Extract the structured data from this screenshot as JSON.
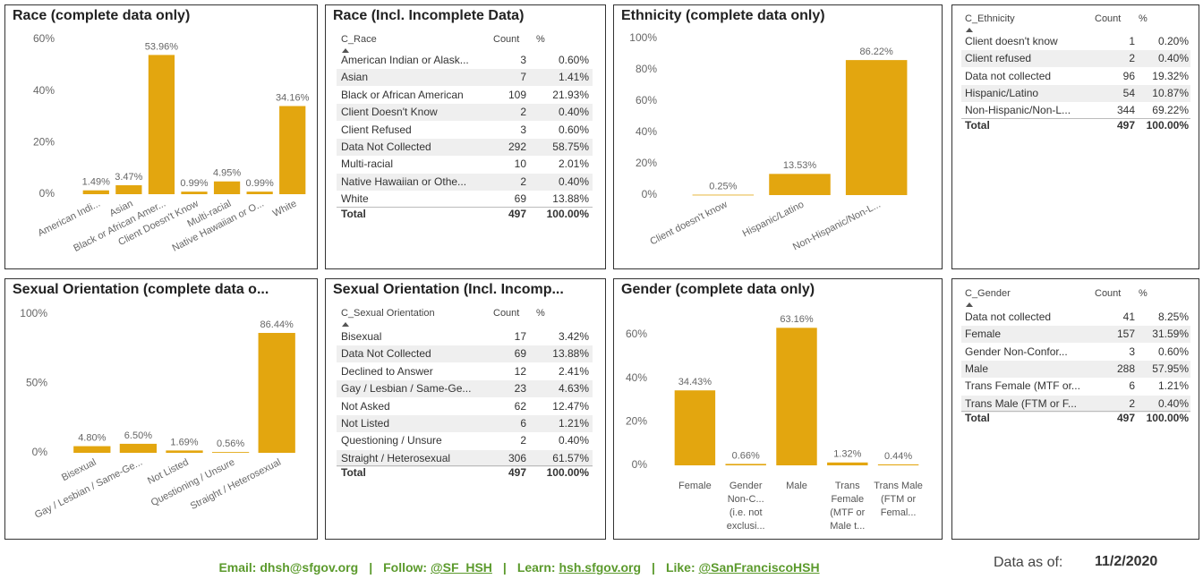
{
  "chart_data": [
    {
      "type": "bar",
      "title": "Race (complete data only)",
      "categories": [
        "American Indi...",
        "Asian",
        "Black or African Amer...",
        "Client Doesn't Know",
        "Multi-racial",
        "Native Hawaiian or O...",
        "White"
      ],
      "values": [
        1.49,
        3.47,
        53.96,
        0.99,
        4.95,
        0.99,
        34.16
      ],
      "value_labels": [
        "1.49%",
        "3.47%",
        "53.96%",
        "0.99%",
        "4.95%",
        "0.99%",
        "34.16%"
      ],
      "color": "#e3a60f",
      "ylim": [
        0,
        62
      ],
      "yticks": [
        {
          "value": 0,
          "label": "0%"
        },
        {
          "value": 20,
          "label": "20%"
        },
        {
          "value": 40,
          "label": "40%"
        },
        {
          "value": 60,
          "label": "60%"
        }
      ],
      "grid": false
    },
    {
      "type": "bar",
      "title": "Ethnicity (complete data only)",
      "categories": [
        "Client doesn't know",
        "Hispanic/Latino",
        "Non-Hispanic/Non-L..."
      ],
      "values": [
        0.25,
        13.53,
        86.22
      ],
      "value_labels": [
        "0.25%",
        "13.53%",
        "86.22%"
      ],
      "color": "#e3a60f",
      "ylim": [
        0,
        100
      ],
      "yticks": [
        {
          "value": 0,
          "label": "0%"
        },
        {
          "value": 20,
          "label": "20%"
        },
        {
          "value": 40,
          "label": "40%"
        },
        {
          "value": 60,
          "label": "60%"
        },
        {
          "value": 80,
          "label": "80%"
        },
        {
          "value": 100,
          "label": "100%"
        }
      ],
      "grid": false
    },
    {
      "type": "bar",
      "title": "Sexual Orientation (complete data o...",
      "categories": [
        "Bisexual",
        "Gay / Lesbian / Same-Ge...",
        "Not Listed",
        "Questioning / Unsure",
        "Straight / Heterosexual"
      ],
      "values": [
        4.8,
        6.5,
        1.69,
        0.56,
        86.44
      ],
      "value_labels": [
        "4.80%",
        "6.50%",
        "1.69%",
        "0.56%",
        "86.44%"
      ],
      "color": "#e3a60f",
      "ylim": [
        0,
        100
      ],
      "yticks": [
        {
          "value": 0,
          "label": "0%"
        },
        {
          "value": 50,
          "label": "50%"
        },
        {
          "value": 100,
          "label": "100%"
        }
      ],
      "grid": false
    },
    {
      "type": "bar",
      "title": "Gender (complete data only)",
      "categories": [
        "Female",
        "Gender Non-C... (i.e. not exclusi...",
        "Male",
        "Trans Female (MTF or Male t...",
        "Trans Male (FTM or Femal..."
      ],
      "values": [
        34.43,
        0.66,
        63.16,
        1.32,
        0.44
      ],
      "value_labels": [
        "34.43%",
        "0.66%",
        "63.16%",
        "1.32%",
        "0.44%"
      ],
      "color": "#e3a60f",
      "ylim": [
        0,
        65
      ],
      "yticks": [
        {
          "value": 0,
          "label": "0%"
        },
        {
          "value": 20,
          "label": "20%"
        },
        {
          "value": 40,
          "label": "40%"
        },
        {
          "value": 60,
          "label": "60%"
        }
      ],
      "grid": false
    }
  ],
  "tables": [
    {
      "title": "Race (Incl. Incomplete Data)",
      "columns": [
        "C_Race",
        "Count",
        "%"
      ],
      "rows": [
        [
          "American Indian or Alask...",
          "3",
          "0.60%"
        ],
        [
          "Asian",
          "7",
          "1.41%"
        ],
        [
          "Black or African American",
          "109",
          "21.93%"
        ],
        [
          "Client Doesn't Know",
          "2",
          "0.40%"
        ],
        [
          "Client Refused",
          "3",
          "0.60%"
        ],
        [
          "Data Not Collected",
          "292",
          "58.75%"
        ],
        [
          "Multi-racial",
          "10",
          "2.01%"
        ],
        [
          "Native Hawaiian or Othe...",
          "2",
          "0.40%"
        ],
        [
          "White",
          "69",
          "13.88%"
        ]
      ],
      "total": [
        "Total",
        "497",
        "100.00%"
      ]
    },
    {
      "columns": [
        "C_Ethnicity",
        "Count",
        "%"
      ],
      "rows": [
        [
          "Client doesn't know",
          "1",
          "0.20%"
        ],
        [
          "Client refused",
          "2",
          "0.40%"
        ],
        [
          "Data not collected",
          "96",
          "19.32%"
        ],
        [
          "Hispanic/Latino",
          "54",
          "10.87%"
        ],
        [
          "Non-Hispanic/Non-L...",
          "344",
          "69.22%"
        ]
      ],
      "total": [
        "Total",
        "497",
        "100.00%"
      ]
    },
    {
      "title": "Sexual Orientation (Incl. Incomp...",
      "columns": [
        "C_Sexual Orientation",
        "Count",
        "%"
      ],
      "rows": [
        [
          "Bisexual",
          "17",
          "3.42%"
        ],
        [
          "Data Not Collected",
          "69",
          "13.88%"
        ],
        [
          "Declined to Answer",
          "12",
          "2.41%"
        ],
        [
          "Gay / Lesbian / Same-Ge...",
          "23",
          "4.63%"
        ],
        [
          "Not Asked",
          "62",
          "12.47%"
        ],
        [
          "Not Listed",
          "6",
          "1.21%"
        ],
        [
          "Questioning / Unsure",
          "2",
          "0.40%"
        ],
        [
          "Straight / Heterosexual",
          "306",
          "61.57%"
        ]
      ],
      "total": [
        "Total",
        "497",
        "100.00%"
      ]
    },
    {
      "columns": [
        "C_Gender",
        "Count",
        "%"
      ],
      "rows": [
        [
          "Data not collected",
          "41",
          "8.25%"
        ],
        [
          "Female",
          "157",
          "31.59%"
        ],
        [
          "Gender Non-Confor...",
          "3",
          "0.60%"
        ],
        [
          "Male",
          "288",
          "57.95%"
        ],
        [
          "Trans Female (MTF or...",
          "6",
          "1.21%"
        ],
        [
          "Trans Male (FTM or F...",
          "2",
          "0.40%"
        ]
      ],
      "total": [
        "Total",
        "497",
        "100.00%"
      ]
    }
  ],
  "footer": {
    "email": "Email: dhsh@sfgov.org",
    "separator": "|",
    "links": [
      {
        "label": "Follow:",
        "text": "@SF_HSH"
      },
      {
        "label": "Learn:",
        "text": "hsh.sfgov.org"
      },
      {
        "label": "Like:",
        "text": "@SanFranciscoHSH"
      }
    ],
    "data_as_of_label": "Data as of:",
    "data_as_of": "11/2/2020"
  }
}
